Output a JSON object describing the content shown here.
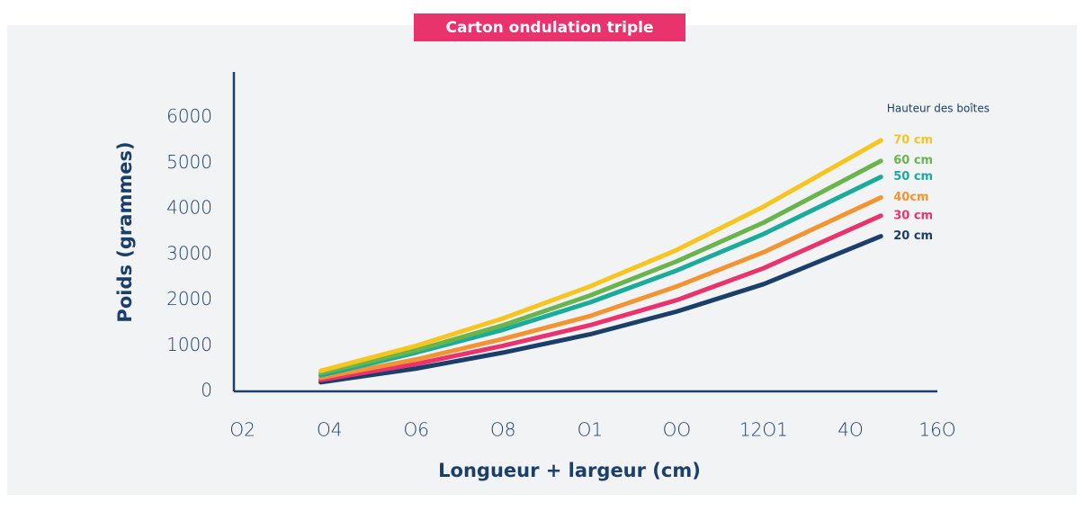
{
  "chart_data": {
    "type": "line",
    "title": "Carton ondulation triple",
    "x_label": "Longueur + largeur (cm)",
    "y_label": "Poids (grammes)",
    "legend_title": "Hauteur des boîtes",
    "x": [
      38,
      60,
      80,
      100,
      120,
      140,
      167
    ],
    "series": [
      {
        "name": "20 cm",
        "color": "#1b3f6b",
        "values": [
          200,
          500,
          850,
          1250,
          1750,
          2350,
          3400
        ]
      },
      {
        "name": "30 cm",
        "color": "#e8336d",
        "values": [
          250,
          600,
          1000,
          1450,
          2000,
          2700,
          3850
        ]
      },
      {
        "name": "40cm",
        "color": "#f39433",
        "values": [
          300,
          700,
          1150,
          1650,
          2300,
          3050,
          4250
        ]
      },
      {
        "name": "50 cm",
        "color": "#1aab9b",
        "values": [
          350,
          850,
          1350,
          1950,
          2650,
          3450,
          4700
        ]
      },
      {
        "name": "60 cm",
        "color": "#6ab44c",
        "values": [
          400,
          900,
          1450,
          2100,
          2850,
          3700,
          5050
        ]
      },
      {
        "name": "70 cm",
        "color": "#f7c520",
        "values": [
          450,
          1000,
          1600,
          2300,
          3100,
          4050,
          5500
        ]
      }
    ],
    "xlim": [
      18,
      180
    ],
    "xticks": [
      {
        "value": 20,
        "label": "O2"
      },
      {
        "value": 40,
        "label": "O4"
      },
      {
        "value": 60,
        "label": "O6"
      },
      {
        "value": 80,
        "label": "O8"
      },
      {
        "value": 100,
        "label": "O1"
      },
      {
        "value": 120,
        "label": "OO"
      },
      {
        "value": 140,
        "label": "12O1"
      },
      {
        "value": 160,
        "label": "4O"
      },
      {
        "value": 180,
        "label": "16O"
      }
    ],
    "ylim": [
      0,
      7000
    ],
    "yticks": [
      0,
      1000,
      2000,
      3000,
      4000,
      5000,
      6000
    ],
    "axis_color": "#1b3f6b"
  }
}
